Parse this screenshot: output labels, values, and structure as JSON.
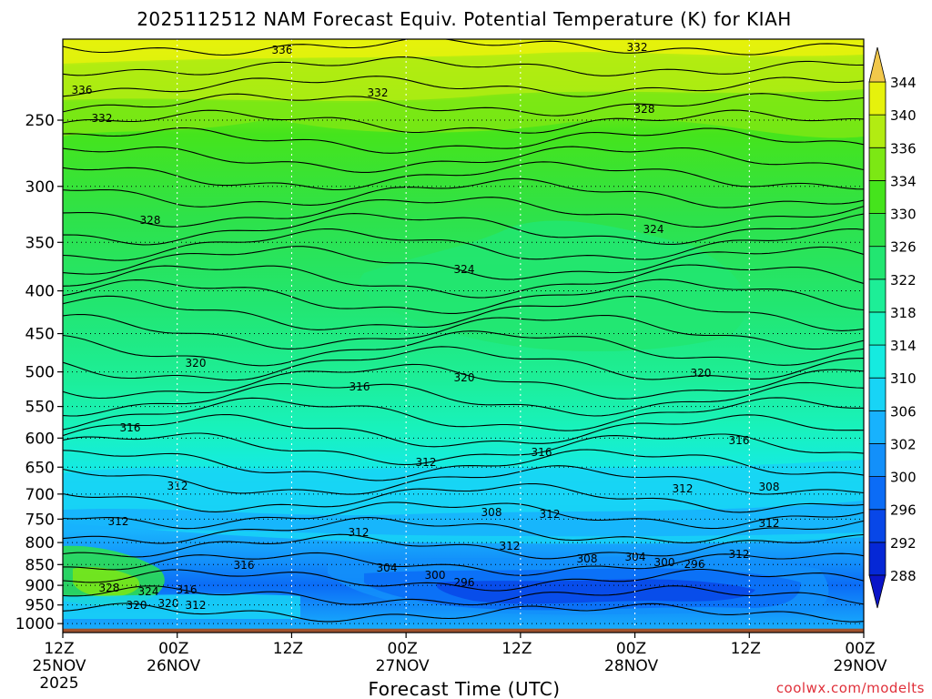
{
  "chart_data": {
    "type": "heatmap",
    "title": "2025112512 NAM Forecast Equiv. Potential Temperature (K) for KIAH",
    "xlabel": "Forecast Time (UTC)",
    "ylabel": "",
    "x_ticks": [
      {
        "top": "12Z",
        "mid": "25NOV",
        "bot": "2025"
      },
      {
        "top": "00Z",
        "mid": "26NOV",
        "bot": ""
      },
      {
        "top": "12Z",
        "mid": "",
        "bot": ""
      },
      {
        "top": "00Z",
        "mid": "27NOV",
        "bot": ""
      },
      {
        "top": "12Z",
        "mid": "",
        "bot": ""
      },
      {
        "top": "00Z",
        "mid": "28NOV",
        "bot": ""
      },
      {
        "top": "12Z",
        "mid": "",
        "bot": ""
      },
      {
        "top": "00Z",
        "mid": "29NOV",
        "bot": ""
      }
    ],
    "x_hours": [
      0,
      12,
      24,
      36,
      48,
      60,
      72,
      84
    ],
    "xlim": [
      0,
      84
    ],
    "y_ticks": [
      250,
      300,
      350,
      400,
      450,
      500,
      550,
      600,
      650,
      700,
      750,
      800,
      850,
      900,
      950,
      1000
    ],
    "ylim": [
      1025,
      200
    ],
    "y_scale": "log",
    "grid": true,
    "colorbar_levels": [
      288,
      292,
      296,
      300,
      302,
      306,
      310,
      314,
      318,
      322,
      326,
      330,
      334,
      336,
      340,
      344
    ],
    "colorbar_colors": [
      "#0528d6",
      "#0847e8",
      "#0b6cf6",
      "#1390fa",
      "#18b2fd",
      "#18d4f6",
      "#15ebe0",
      "#18f2be",
      "#1dee97",
      "#22e671",
      "#2ee24a",
      "#45e41c",
      "#7ce814",
      "#b2ec12",
      "#e6f20c"
    ],
    "contour_labels": [
      "336",
      "332",
      "328",
      "324",
      "320",
      "316",
      "312",
      "308",
      "304",
      "300",
      "296"
    ],
    "terrain_color": "#a0522d"
  },
  "credit": "coolwx.com/modelts"
}
